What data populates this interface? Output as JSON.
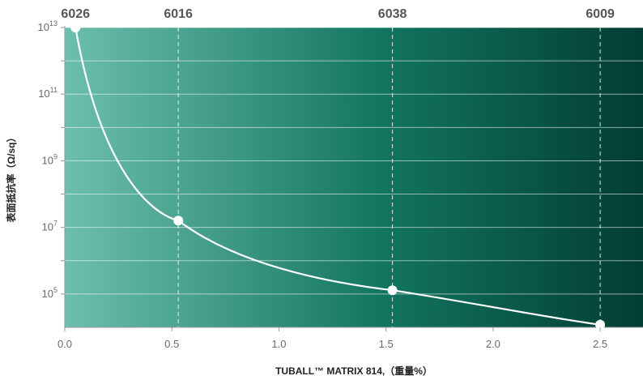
{
  "chart_data": {
    "type": "line",
    "title": "",
    "xlabel": "TUBALL™ MATRIX 814,（重量%）",
    "ylabel": "表面抵抗率（Ω/sq）",
    "y_scale": "log",
    "xlim": [
      0,
      2.7
    ],
    "ylim_log10": [
      4,
      13
    ],
    "x_ticks": [
      {
        "value": 0.0,
        "label": "0.0"
      },
      {
        "value": 0.5,
        "label": "0.5"
      },
      {
        "value": 1.0,
        "label": "1.0"
      },
      {
        "value": 1.5,
        "label": "1.5"
      },
      {
        "value": 2.0,
        "label": "2.0"
      },
      {
        "value": 2.5,
        "label": "2.5"
      }
    ],
    "y_ticks": [
      {
        "exp": 13,
        "base": "10",
        "sup": "13"
      },
      {
        "exp": 11,
        "base": "10",
        "sup": "11"
      },
      {
        "exp": 9,
        "base": "10",
        "sup": "9"
      },
      {
        "exp": 7,
        "base": "10",
        "sup": "7"
      },
      {
        "exp": 5,
        "base": "10",
        "sup": "5"
      }
    ],
    "grid_y_exps": [
      5,
      6,
      7,
      8,
      9,
      10,
      11,
      12,
      13
    ],
    "series": [
      {
        "points": [
          {
            "x": 0.05,
            "y": 10000000000000.0,
            "label": "6026"
          },
          {
            "x": 0.53,
            "y": 16000000.0,
            "label": "6016"
          },
          {
            "x": 1.53,
            "y": 130000.0,
            "label": "6038"
          },
          {
            "x": 2.5,
            "y": 12000.0,
            "label": "6009"
          }
        ]
      }
    ],
    "colors": {
      "gradient_start": "#6cbfad",
      "gradient_mid": "#12755f",
      "gradient_end": "#023d33",
      "line": "#ffffff",
      "grid": "#ffffff"
    }
  }
}
